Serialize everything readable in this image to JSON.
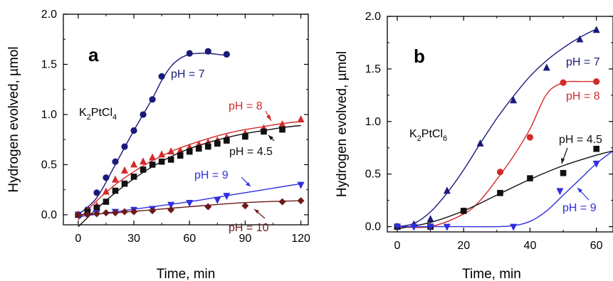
{
  "chart_data": [
    {
      "panel_label": "a",
      "type": "scatter",
      "xlabel": "Time, min",
      "ylabel": "Hydrogen evolved, µmol",
      "xlim": [
        -8,
        124
      ],
      "ylim": [
        -0.1,
        2.0
      ],
      "xticks": [
        0,
        30,
        60,
        90,
        120
      ],
      "yticks": [
        0.0,
        0.5,
        1.0,
        1.5,
        2.0
      ],
      "xtick_labels": [
        "0",
        "30",
        "60",
        "90",
        "120"
      ],
      "ytick_labels": [
        "0.0",
        "0.5",
        "1.0",
        "1.5",
        "2.0"
      ],
      "annotation": {
        "main": "K",
        "sub1": "2",
        "mid": "PtCl",
        "sub2": "4"
      },
      "series": [
        {
          "name": "pH = 7",
          "color": "#1a1a7a",
          "marker": "circle",
          "x": [
            0,
            5,
            10,
            15,
            20,
            25,
            30,
            35,
            40,
            45,
            60,
            70,
            80
          ],
          "y": [
            0.0,
            0.05,
            0.22,
            0.37,
            0.53,
            0.68,
            0.84,
            1.0,
            1.15,
            1.38,
            1.61,
            1.63,
            1.6
          ],
          "curve": {
            "x": [
              0,
              10,
              20,
              30,
              40,
              45,
              50,
              55,
              60,
              65,
              70,
              75,
              80
            ],
            "y": [
              0.0,
              0.17,
              0.5,
              0.84,
              1.16,
              1.34,
              1.48,
              1.56,
              1.6,
              1.61,
              1.61,
              1.6,
              1.59
            ]
          }
        },
        {
          "name": "pH = 8",
          "color": "#d42a2a",
          "marker": "triangle-up",
          "x": [
            0,
            5,
            10,
            15,
            20,
            25,
            30,
            35,
            40,
            45,
            50,
            55,
            60,
            65,
            70,
            75,
            80,
            90,
            100,
            110,
            120
          ],
          "y": [
            0.0,
            0.04,
            0.09,
            0.23,
            0.35,
            0.44,
            0.5,
            0.53,
            0.57,
            0.6,
            0.63,
            0.64,
            0.67,
            0.7,
            0.72,
            0.74,
            0.77,
            0.81,
            0.86,
            0.9,
            0.95
          ],
          "curve": {
            "x": [
              0,
              10,
              20,
              30,
              40,
              50,
              60,
              70,
              80,
              90,
              100,
              110,
              120
            ],
            "y": [
              -0.05,
              0.14,
              0.3,
              0.43,
              0.54,
              0.63,
              0.7,
              0.76,
              0.81,
              0.85,
              0.88,
              0.91,
              0.93
            ]
          }
        },
        {
          "name": "pH = 4.5",
          "color": "#111111",
          "marker": "square",
          "x": [
            0,
            5,
            10,
            15,
            20,
            25,
            30,
            35,
            40,
            45,
            50,
            55,
            60,
            65,
            70,
            75,
            80,
            90,
            100,
            110
          ],
          "y": [
            0.0,
            0.03,
            0.07,
            0.13,
            0.24,
            0.31,
            0.38,
            0.45,
            0.5,
            0.53,
            0.55,
            0.59,
            0.63,
            0.66,
            0.68,
            0.71,
            0.74,
            0.78,
            0.83,
            0.85
          ],
          "curve": {
            "x": [
              0,
              10,
              20,
              30,
              40,
              50,
              60,
              70,
              80,
              90,
              100,
              110,
              120
            ],
            "y": [
              -0.12,
              0.06,
              0.22,
              0.36,
              0.48,
              0.58,
              0.66,
              0.72,
              0.77,
              0.81,
              0.84,
              0.87,
              0.89
            ]
          }
        },
        {
          "name": "pH = 9",
          "color": "#2f2fe0",
          "marker": "triangle-down",
          "x": [
            0,
            10,
            20,
            30,
            40,
            50,
            60,
            75,
            80,
            120
          ],
          "y": [
            0.0,
            0.02,
            0.03,
            0.05,
            0.06,
            0.1,
            0.12,
            0.15,
            0.19,
            0.3
          ],
          "curve": {
            "x": [
              0,
              20,
              40,
              60,
              80,
              100,
              120
            ],
            "y": [
              -0.02,
              0.03,
              0.08,
              0.13,
              0.19,
              0.25,
              0.31
            ]
          }
        },
        {
          "name": "pH = 10",
          "color": "#6b1a1a",
          "marker": "diamond",
          "x": [
            0,
            5,
            10,
            15,
            20,
            25,
            30,
            40,
            50,
            70,
            90,
            110,
            120
          ],
          "y": [
            0.0,
            0.0,
            0.01,
            0.02,
            0.02,
            0.03,
            0.03,
            0.04,
            0.05,
            0.08,
            0.09,
            0.13,
            0.14
          ],
          "curve": {
            "x": [
              0,
              20,
              40,
              60,
              80,
              100,
              120
            ],
            "y": [
              0.0,
              0.02,
              0.05,
              0.08,
              0.11,
              0.13,
              0.14
            ]
          }
        }
      ],
      "labels": [
        "pH = 7",
        "pH = 8",
        "pH = 4.5",
        "pH = 9",
        "pH = 10"
      ]
    },
    {
      "panel_label": "b",
      "type": "scatter",
      "xlabel": "Time, min",
      "ylabel": "Hydrogen evolved, µmol",
      "xlim": [
        -3,
        65
      ],
      "ylim": [
        -0.05,
        2.0
      ],
      "xticks": [
        0,
        20,
        40,
        60
      ],
      "yticks": [
        0.0,
        0.5,
        1.0,
        1.5,
        2.0
      ],
      "xtick_labels": [
        "0",
        "20",
        "40",
        "60"
      ],
      "ytick_labels": [
        "0.0",
        "0.5",
        "1.0",
        "1.5",
        "2.0"
      ],
      "annotation": {
        "main": "K",
        "sub1": "2",
        "mid": "PtCl",
        "sub2": "6"
      },
      "series": [
        {
          "name": "pH = 7",
          "color": "#1a1a7a",
          "marker": "triangle-up",
          "x": [
            0,
            5,
            10,
            15,
            25,
            35,
            45,
            55,
            60
          ],
          "y": [
            0.0,
            0.02,
            0.07,
            0.34,
            0.79,
            1.2,
            1.51,
            1.78,
            1.87
          ],
          "curve": {
            "x": [
              0,
              5,
              10,
              15,
              20,
              25,
              30,
              35,
              40,
              45,
              50,
              55,
              60
            ],
            "y": [
              0.0,
              0.03,
              0.14,
              0.32,
              0.54,
              0.79,
              1.03,
              1.24,
              1.43,
              1.58,
              1.7,
              1.8,
              1.88
            ]
          }
        },
        {
          "name": "pH = 8",
          "color": "#d42a2a",
          "marker": "circle",
          "x": [
            0,
            10,
            20,
            31,
            40,
            50,
            60
          ],
          "y": [
            0.0,
            0.0,
            0.15,
            0.52,
            0.85,
            1.37,
            1.38
          ],
          "curve": {
            "x": [
              0,
              10,
              20,
              25,
              30,
              35,
              40,
              45,
              50,
              55,
              60
            ],
            "y": [
              0.0,
              0.0,
              0.12,
              0.25,
              0.45,
              0.67,
              0.93,
              1.26,
              1.37,
              1.38,
              1.38
            ]
          }
        },
        {
          "name": "pH = 4.5",
          "color": "#111111",
          "marker": "square",
          "x": [
            0,
            10,
            20,
            31,
            40,
            50,
            60
          ],
          "y": [
            0.0,
            0.0,
            0.15,
            0.32,
            0.46,
            0.51,
            0.74
          ],
          "curve": {
            "x": [
              0,
              10,
              20,
              30,
              40,
              50,
              60,
              65
            ],
            "y": [
              -0.02,
              0.04,
              0.15,
              0.3,
              0.45,
              0.58,
              0.68,
              0.72
            ]
          }
        },
        {
          "name": "pH = 9",
          "color": "#2f2fe0",
          "marker": "triangle-down",
          "x": [
            0,
            5,
            10,
            15,
            35,
            49,
            60
          ],
          "y": [
            0.0,
            0.0,
            0.0,
            0.0,
            0.0,
            0.34,
            0.6
          ],
          "curve": {
            "x": [
              0,
              10,
              20,
              30,
              35,
              40,
              45,
              50,
              55,
              60,
              65
            ],
            "y": [
              0.0,
              0.0,
              0.0,
              0.0,
              0.01,
              0.05,
              0.15,
              0.3,
              0.45,
              0.6,
              0.72
            ]
          }
        }
      ],
      "labels": [
        "pH = 7",
        "pH = 8",
        "pH = 4.5",
        "pH = 9"
      ]
    }
  ]
}
